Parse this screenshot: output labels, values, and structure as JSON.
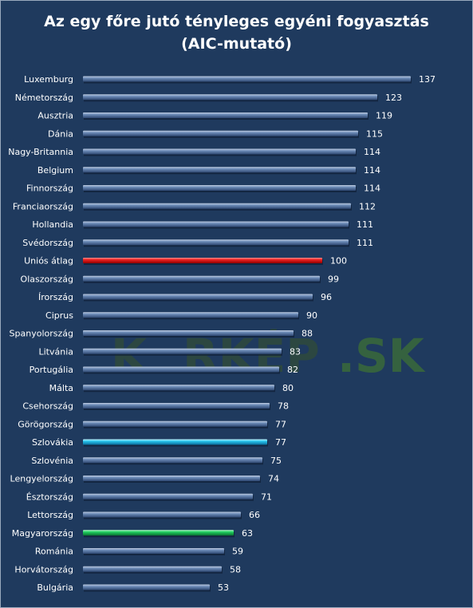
{
  "watermark": {
    "left": "K",
    "right": "RKÉP",
    "suffix": ".SK"
  },
  "chart_data": {
    "type": "bar",
    "orientation": "horizontal",
    "title_line1": "Az egy főre jutó tényleges egyéni fogyasztás",
    "title_line2": "(AIC-mutató)",
    "xlim": [
      0,
      140
    ],
    "grid": false,
    "legend": "none",
    "bar_color": "#4a6a9a",
    "categories": [
      "Luxemburg",
      "Németország",
      "Ausztria",
      "Dánia",
      "Nagy-Britannia",
      "Belgium",
      "Finnország",
      "Franciaország",
      "Hollandia",
      "Svédország",
      "Uniós átlag",
      "Olaszország",
      "Írország",
      "Ciprus",
      "Spanyolország",
      "Litvánia",
      "Portugália",
      "Málta",
      "Csehország",
      "Görögország",
      "Szlovákia",
      "Szlovénia",
      "Lengyelország",
      "Észtország",
      "Lettország",
      "Magyarország",
      "Románia",
      "Horvátország",
      "Bulgária"
    ],
    "values": [
      137,
      123,
      119,
      115,
      114,
      114,
      114,
      112,
      111,
      111,
      100,
      99,
      96,
      90,
      88,
      83,
      82,
      80,
      78,
      77,
      77,
      75,
      74,
      71,
      66,
      63,
      59,
      58,
      53
    ],
    "highlights": {
      "Uniós átlag": "#e81818",
      "Szlovákia": "#22c8f0",
      "Magyarország": "#22d060"
    }
  }
}
